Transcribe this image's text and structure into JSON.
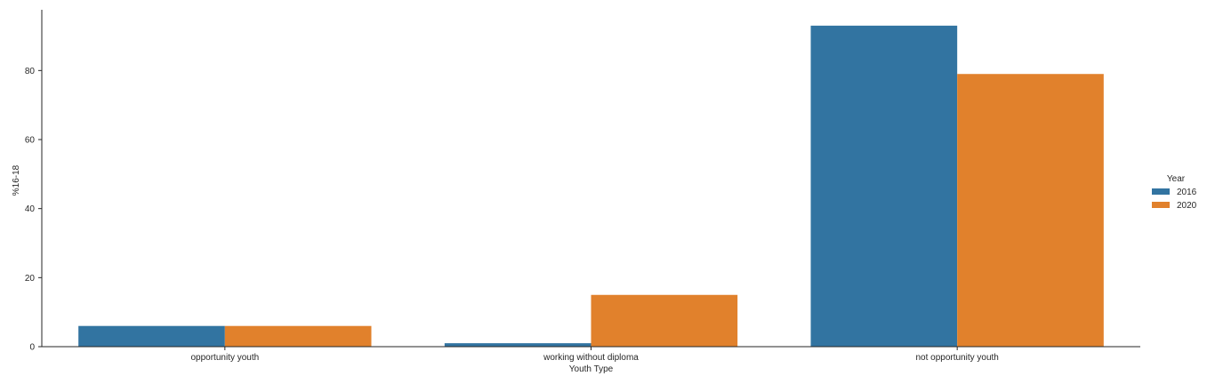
{
  "chart_data": {
    "type": "bar",
    "categories": [
      "opportunity youth",
      "working without diploma",
      "not opportunity youth"
    ],
    "series": [
      {
        "name": "2016",
        "values": [
          6,
          1,
          93
        ],
        "color": "#3274a1"
      },
      {
        "name": "2020",
        "values": [
          6,
          15,
          79
        ],
        "color": "#e1812c"
      }
    ],
    "xlabel": "Youth Type",
    "ylabel": "%16-18",
    "ylim": [
      0,
      97.6
    ],
    "yticks": [
      0,
      20,
      40,
      60,
      80
    ],
    "legend": {
      "title": "Year",
      "position": "right"
    },
    "grid": false
  }
}
